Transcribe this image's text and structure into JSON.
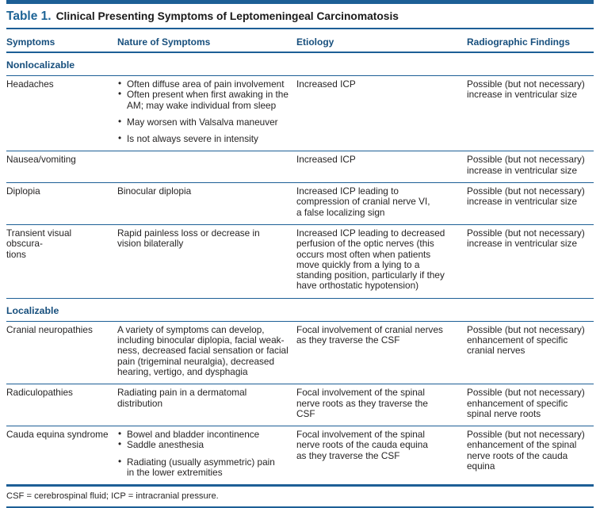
{
  "title": {
    "label": "Table 1.",
    "text": "Clinical Presenting Symptoms of Leptomeningeal Carcinomatosis"
  },
  "columns": [
    "Symptoms",
    "Nature of Symptoms",
    "Etiology",
    "Radiographic Findings"
  ],
  "sections": [
    {
      "header": "Nonlocalizable",
      "rows": [
        {
          "symptom": "Headaches",
          "nature_bullets": [
            "Often diffuse area of pain involvement",
            "Often present when first awaking in the\nAM; may wake individual from sleep",
            "May worsen with Valsalva maneuver",
            "Is not always severe in intensity"
          ],
          "etiology": "Increased ICP",
          "radiographic": "Possible (but not necessary)\nincrease in ventricular size"
        },
        {
          "symptom": "Nausea/vomiting",
          "nature": "",
          "etiology": "Increased ICP",
          "radiographic": "Possible (but not necessary)\nincrease in ventricular size"
        },
        {
          "symptom": "Diplopia",
          "nature": "Binocular diplopia",
          "etiology": "Increased ICP leading to\ncompression of cranial nerve VI,\na false localizing sign",
          "radiographic": "Possible (but not necessary)\nincrease in ventricular size"
        },
        {
          "symptom": "Transient visual obscura-\ntions",
          "nature": "Rapid painless loss or decrease in\nvision bilaterally",
          "etiology": "Increased ICP leading to decreased\nperfusion of the optic nerves (this\noccurs most often when patients\nmove quickly from a lying to a\nstanding position, particularly if they\nhave orthostatic hypotension)",
          "radiographic": "Possible (but not necessary)\nincrease in ventricular size"
        }
      ]
    },
    {
      "header": "Localizable",
      "rows": [
        {
          "symptom": "Cranial neuropathies",
          "nature": "A variety of symptoms can develop,\nincluding binocular diplopia, facial weak-\nness, decreased facial sensation or facial\npain (trigeminal neuralgia), decreased\nhearing, vertigo, and dysphagia",
          "etiology": "Focal involvement of cranial nerves\nas they traverse the CSF",
          "radiographic": "Possible (but not necessary)\nenhancement of specific\ncranial nerves"
        },
        {
          "symptom": "Radiculopathies",
          "nature": "Radiating pain in a dermatomal\ndistribution",
          "etiology": "Focal involvement of the spinal\nnerve roots as they traverse the\nCSF",
          "radiographic": "Possible (but not necessary)\nenhancement of specific\nspinal nerve roots"
        },
        {
          "symptom": "Cauda equina syndrome",
          "nature_bullets": [
            "Bowel and bladder incontinence",
            "Saddle anesthesia",
            "Radiating (usually asymmetric) pain\nin the lower extremities"
          ],
          "etiology": "Focal involvement of the spinal\nnerve roots of the cauda equina\nas they traverse the CSF",
          "radiographic": "Possible (but not necessary)\nenhancement of the spinal\nnerve roots of the cauda\nequina"
        }
      ]
    }
  ],
  "footnote": "CSF = cerebrospinal fluid; ICP = intracranial pressure.",
  "colors": {
    "accent_blue": "#1d5f96",
    "title_blue": "#1d6496",
    "header_navy": "#174f7d",
    "body_text": "#262424"
  }
}
